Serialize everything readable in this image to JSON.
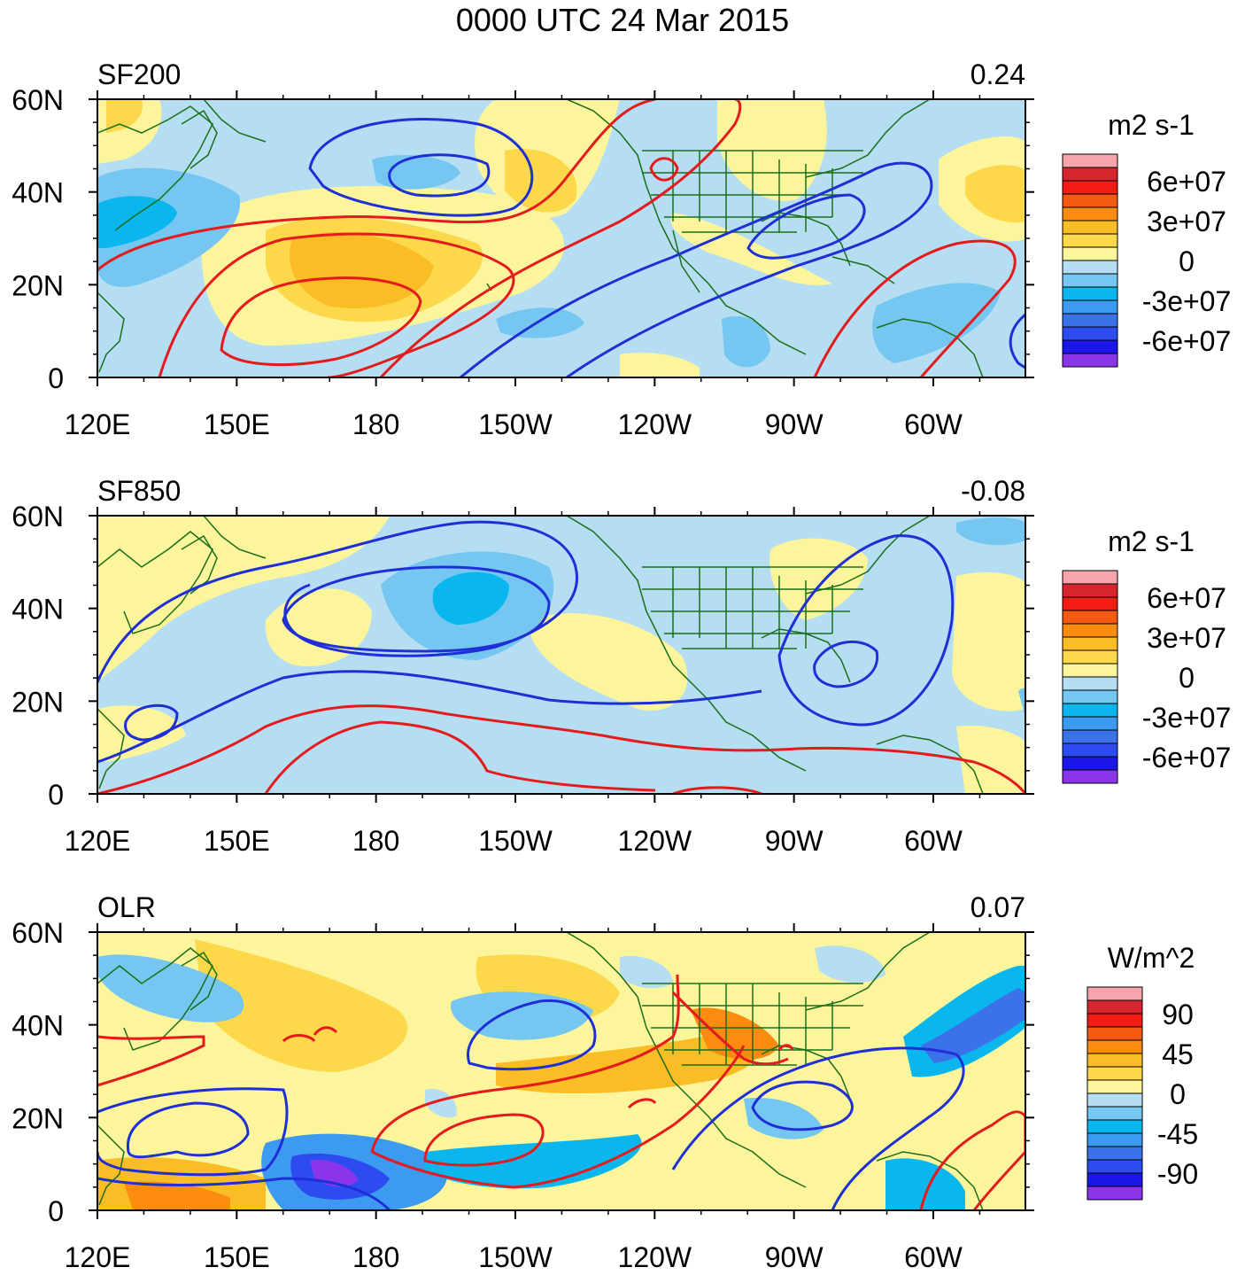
{
  "title": "0000 UTC 24 Mar 2015",
  "x_ticks": [
    "120E",
    "150E",
    "180",
    "150W",
    "120W",
    "90W",
    "60W"
  ],
  "y_ticks": [
    "60N",
    "40N",
    "20N",
    "0"
  ],
  "panels": [
    {
      "label": "SF200",
      "corr": "0.24",
      "units": "m2 s-1",
      "colorbar_labels": [
        "6e+07",
        "3e+07",
        "0",
        "-3e+07",
        "-6e+07"
      ],
      "colorbar_colors": [
        "#f6a5ad",
        "#d7262d",
        "#f21c15",
        "#f55a13",
        "#fb8c10",
        "#fbbd25",
        "#fcd84a",
        "#fdf59c",
        "#b6def3",
        "#75c6f1",
        "#09b7ee",
        "#3c9af0",
        "#3c72e8",
        "#2c4cf0",
        "#1b16e8",
        "#8a35ec"
      ]
    },
    {
      "label": "SF850",
      "corr": "-0.08",
      "units": "m2 s-1",
      "colorbar_labels": [
        "6e+07",
        "3e+07",
        "0",
        "-3e+07",
        "-6e+07"
      ],
      "colorbar_colors": [
        "#f6a5ad",
        "#d7262d",
        "#f21c15",
        "#f55a13",
        "#fb8c10",
        "#fbbd25",
        "#fcd84a",
        "#fdf59c",
        "#b6def3",
        "#75c6f1",
        "#09b7ee",
        "#3c9af0",
        "#3c72e8",
        "#2c4cf0",
        "#1b16e8",
        "#8a35ec"
      ]
    },
    {
      "label": "OLR",
      "corr": "0.07",
      "units": "W/m^2",
      "colorbar_labels": [
        "90",
        "45",
        "0",
        "-45",
        "-90"
      ],
      "colorbar_colors": [
        "#f6a5ad",
        "#d7262d",
        "#f21c15",
        "#f55a13",
        "#fb8c10",
        "#fbbd25",
        "#fcd84a",
        "#fdf59c",
        "#b6def3",
        "#75c6f1",
        "#09b7ee",
        "#3c9af0",
        "#3c72e8",
        "#2c4cf0",
        "#1b16e8",
        "#8a35ec"
      ]
    }
  ],
  "colors": {
    "land_outline": "#1a6e1a",
    "positive_contour": "#e41a1c",
    "negative_contour": "#1f2fd6"
  }
}
